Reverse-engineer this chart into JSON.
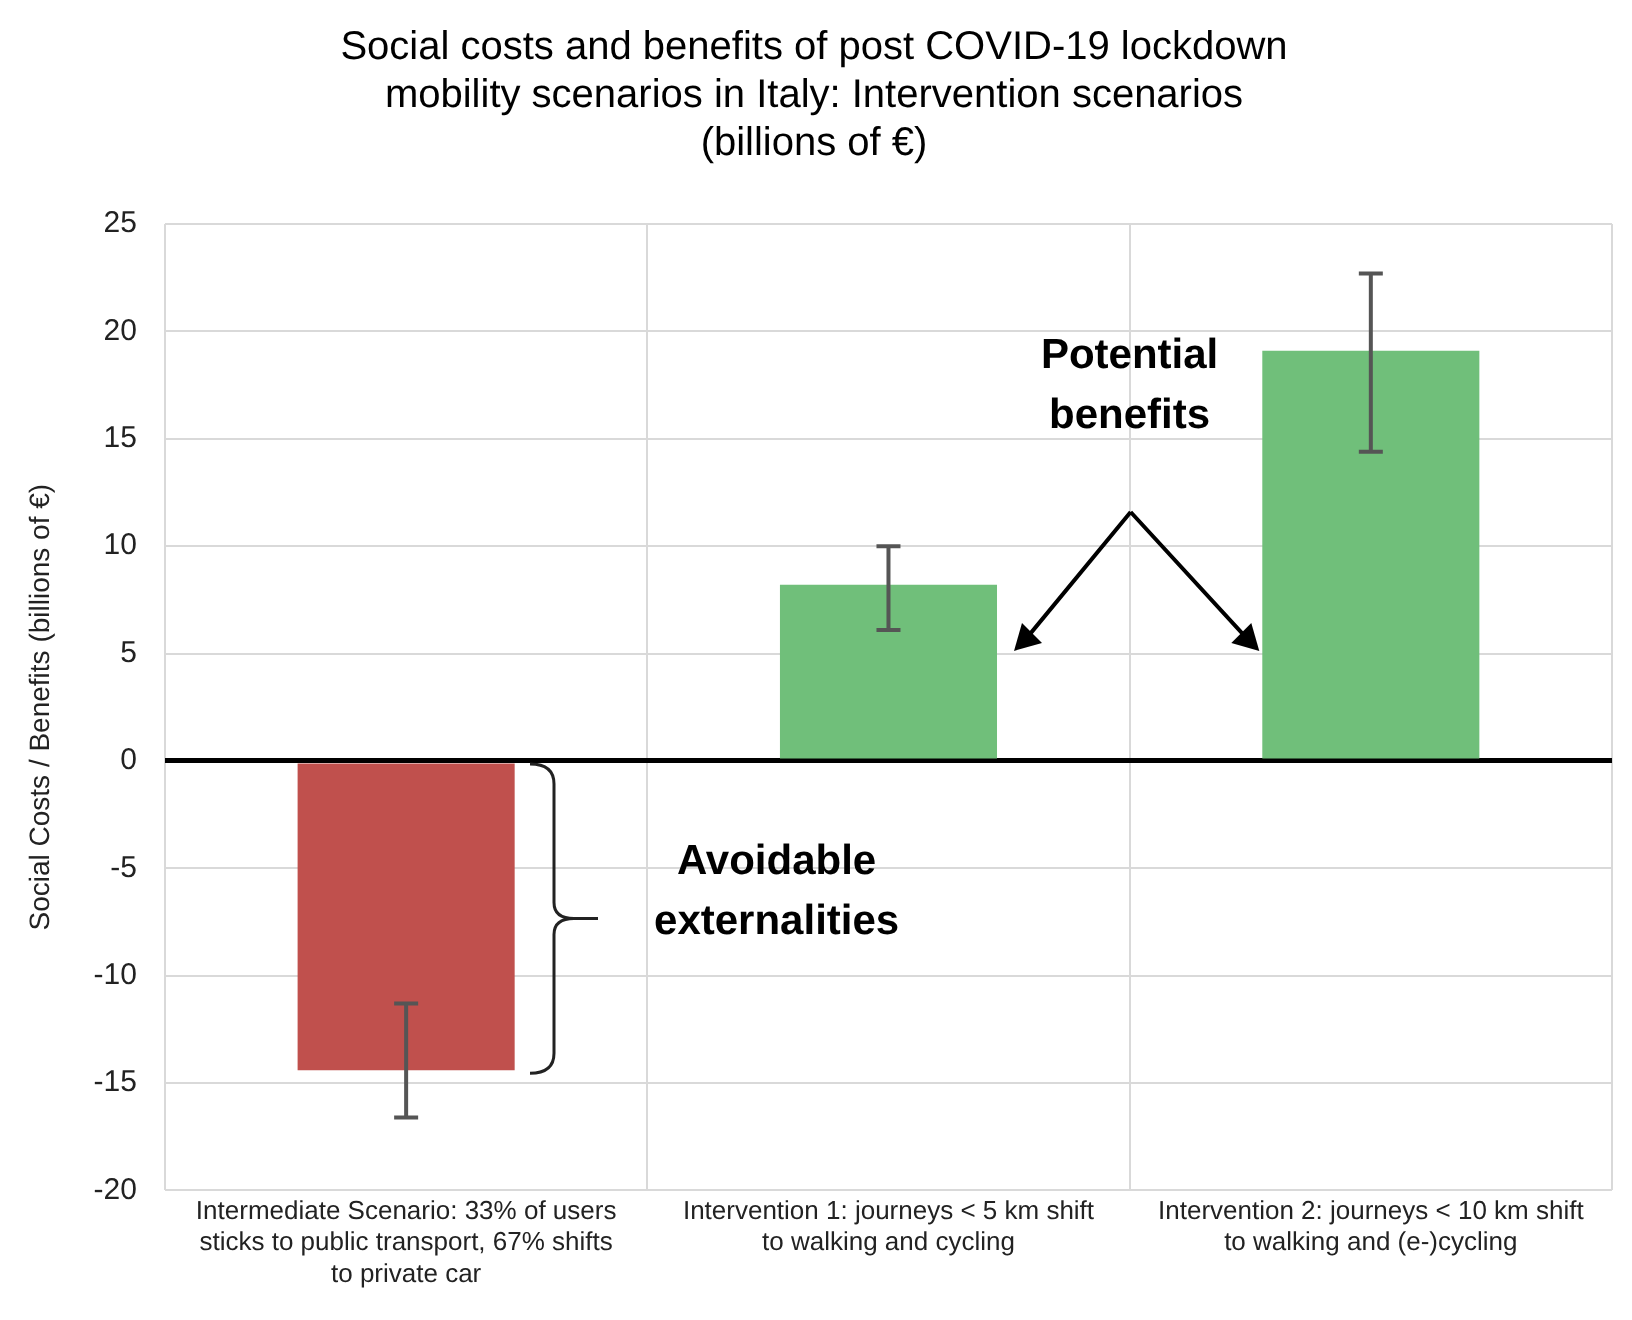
{
  "chart_data": {
    "type": "bar",
    "title": "Social costs and benefits of post COVID-19 lockdown mobility scenarios in Italy: Intervention scenarios (billions of €)",
    "ylabel": "Social Costs / Benefits (billions of €)",
    "categories": [
      "Intermediate Scenario: 33% of users sticks to public transport, 67% shifts to private car",
      "Intervention 1: journeys < 5 km shift to walking and cycling",
      "Intervention 2: journeys < 10 km shift to walking and (e-)cycling"
    ],
    "values": [
      -14.4,
      8.2,
      19.1
    ],
    "colors": [
      "#c0504d",
      "#70bf7a",
      "#70bf7a"
    ],
    "errors": [
      [
        -16.6,
        -11.3
      ],
      [
        6.1,
        10.0
      ],
      [
        14.4,
        22.7
      ]
    ],
    "ylim": [
      -20,
      25
    ],
    "yticks": [
      -20,
      -15,
      -10,
      -5,
      0,
      5,
      10,
      15,
      20,
      25
    ],
    "grid": true,
    "annotations": [
      "Avoidable externalities",
      "Potential benefits"
    ]
  }
}
